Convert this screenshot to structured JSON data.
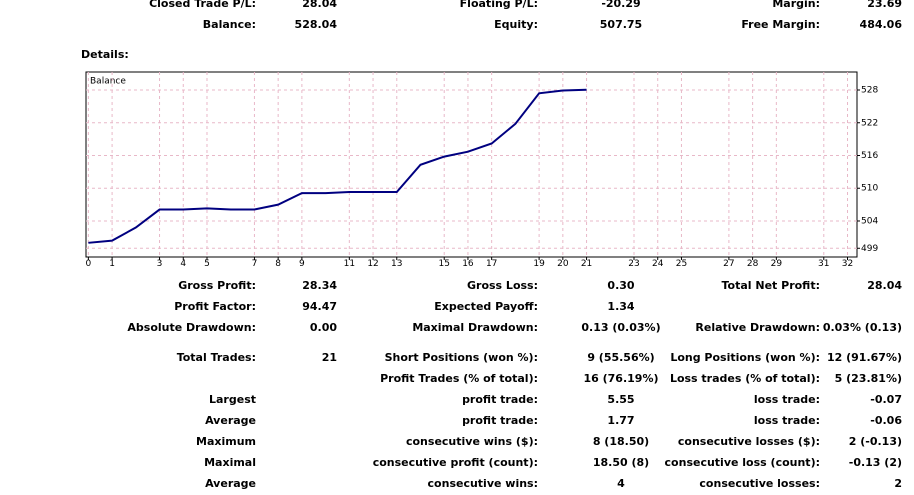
{
  "summary": {
    "rows": [
      {
        "c1": [
          "Closed Trade P/L:",
          "28.04"
        ],
        "c2": [
          "Floating P/L:",
          "-20.29"
        ],
        "c3": [
          "Margin:",
          "23.69"
        ]
      },
      {
        "c1": [
          "Balance:",
          "528.04"
        ],
        "c2": [
          "Equity:",
          "507.75"
        ],
        "c3": [
          "Free Margin:",
          "484.06"
        ]
      }
    ]
  },
  "details_label": "Details:",
  "chart_data": {
    "type": "line",
    "title": "Balance",
    "x": [
      0,
      1,
      2,
      3,
      4,
      5,
      6,
      7,
      8,
      9,
      10,
      11,
      12,
      13,
      14,
      15,
      16,
      17,
      18,
      19,
      20,
      21
    ],
    "series": [
      {
        "name": "Balance",
        "color": "#000080",
        "values": [
          500.0,
          500.4,
          502.8,
          506.1,
          506.1,
          506.3,
          506.1,
          506.1,
          507.0,
          509.1,
          509.1,
          509.3,
          509.3,
          509.3,
          514.3,
          515.8,
          516.7,
          518.2,
          521.8,
          527.4,
          527.9,
          528.04
        ]
      }
    ],
    "xlim": [
      -0.1,
      32.4
    ],
    "ylim": [
      497.4,
      531.3
    ],
    "xticks": [
      0,
      1,
      3,
      4,
      5,
      7,
      8,
      9,
      11,
      12,
      13,
      15,
      16,
      17,
      19,
      20,
      21,
      23,
      24,
      25,
      27,
      28,
      29,
      31,
      32
    ],
    "yticks": [
      528,
      522,
      516,
      510,
      504,
      499
    ],
    "grid": true
  },
  "stats": {
    "rows": [
      {
        "c1": [
          "Gross Profit:",
          "28.34"
        ],
        "c2": [
          "Gross Loss:",
          "0.30"
        ],
        "c3": [
          "Total Net Profit:",
          "28.04"
        ]
      },
      {
        "c1": [
          "Profit Factor:",
          "94.47"
        ],
        "c2": [
          "Expected Payoff:",
          "1.34"
        ]
      },
      {
        "c1": [
          "Absolute Drawdown:",
          "0.00"
        ],
        "c2": [
          "Maximal Drawdown:",
          "0.13 (0.03%)"
        ],
        "c3": [
          "Relative Drawdown:",
          "0.03% (0.13)"
        ]
      },
      {
        "c1": [
          "Total Trades:",
          "21"
        ],
        "c2": [
          "Short Positions (won %):",
          "9 (55.56%)"
        ],
        "c3": [
          "Long Positions (won %):",
          "12 (91.67%)"
        ]
      },
      {
        "c2": [
          "Profit Trades (% of total):",
          "16 (76.19%)"
        ],
        "c3": [
          "Loss trades (% of total):",
          "5 (23.81%)"
        ]
      },
      {
        "c1": [
          "Largest"
        ],
        "c2": [
          "profit trade:",
          "5.55"
        ],
        "c3": [
          "loss trade:",
          "-0.07"
        ]
      },
      {
        "c1": [
          "Average"
        ],
        "c2": [
          "profit trade:",
          "1.77"
        ],
        "c3": [
          "loss trade:",
          "-0.06"
        ]
      },
      {
        "c1": [
          "Maximum"
        ],
        "c2": [
          "consecutive wins ($):",
          "8 (18.50)"
        ],
        "c3": [
          "consecutive losses ($):",
          "2 (-0.13)"
        ]
      },
      {
        "c1": [
          "Maximal"
        ],
        "c2": [
          "consecutive profit (count):",
          "18.50 (8)"
        ],
        "c3": [
          "consecutive loss (count):",
          "-0.13 (2)"
        ]
      },
      {
        "c1": [
          "Average"
        ],
        "c2": [
          "consecutive wins:",
          "4"
        ],
        "c3": [
          "consecutive losses:",
          "2"
        ]
      }
    ]
  }
}
